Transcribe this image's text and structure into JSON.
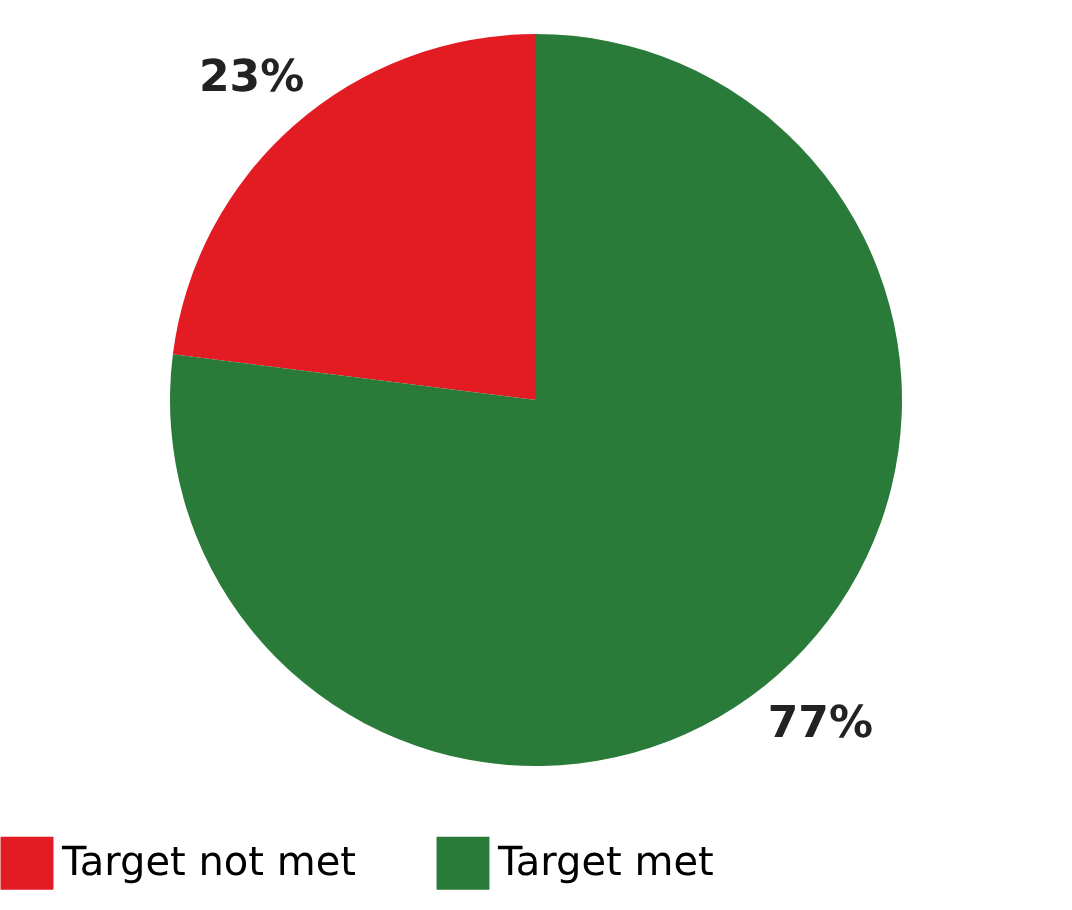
{
  "chart_data": {
    "type": "pie",
    "categories": [
      "Target not met",
      "Target met"
    ],
    "values": [
      23,
      77
    ],
    "colors": [
      "#e31b23",
      "#2a7a3a"
    ],
    "value_labels": [
      "23%",
      "77%"
    ],
    "legend": "bottom"
  }
}
